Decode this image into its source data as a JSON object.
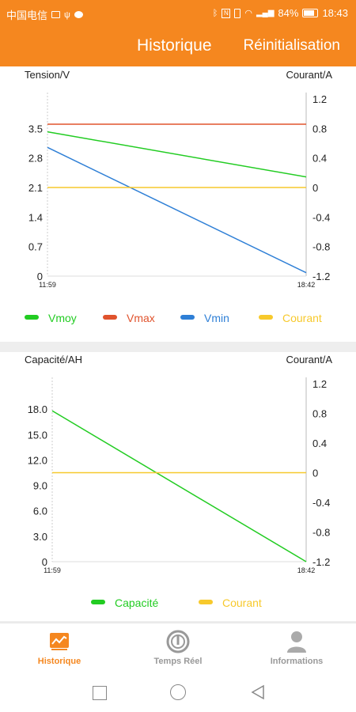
{
  "status_bar": {
    "carrier": "中国电信",
    "battery": "84%",
    "time": "18:43",
    "icons": [
      "sim-icon",
      "usb-icon",
      "message-icon",
      "bluetooth-icon",
      "nfc-icon",
      "vibrate-icon",
      "wifi-icon",
      "signal-icon",
      "battery-icon"
    ]
  },
  "app_bar": {
    "title": "Historique",
    "action": "Réinitialisation"
  },
  "colors": {
    "accent": "#f5871f",
    "vmoy": "#22cc22",
    "vmax": "#e0532d",
    "vmin": "#2e7fd6",
    "courant": "#f7c92c",
    "capacite": "#22cc22",
    "nav_inactive": "#999999"
  },
  "chart_data": [
    {
      "type": "line",
      "left_axis_title": "Tension/V",
      "right_axis_title": "Courant/A",
      "x_labels": [
        "11:59",
        "18:42"
      ],
      "y_left_ticks": [
        "0",
        "0.7",
        "1.4",
        "2.1",
        "2.8",
        "3.5"
      ],
      "y_left_lim": [
        0,
        4.2
      ],
      "y_right_ticks": [
        "-1.2",
        "-0.8",
        "-0.4",
        "0",
        "0.4",
        "0.8",
        "1.2"
      ],
      "y_right_lim": [
        -1.2,
        1.2
      ],
      "series": [
        {
          "name": "Vmoy",
          "axis": "left",
          "color": "#22cc22",
          "values": [
            3.42,
            2.35
          ]
        },
        {
          "name": "Vmax",
          "axis": "left",
          "color": "#e0532d",
          "values": [
            3.6,
            3.6
          ]
        },
        {
          "name": "Vmin",
          "axis": "left",
          "color": "#2e7fd6",
          "values": [
            3.05,
            0.08
          ]
        },
        {
          "name": "Courant",
          "axis": "right",
          "color": "#f7c92c",
          "values": [
            0,
            0
          ]
        }
      ]
    },
    {
      "type": "line",
      "left_axis_title": "Capacité/AH",
      "right_axis_title": "Courant/A",
      "x_labels": [
        "11:59",
        "18:42"
      ],
      "y_left_ticks": [
        "0",
        "3.0",
        "6.0",
        "9.0",
        "12.0",
        "15.0",
        "18.0"
      ],
      "y_left_lim": [
        0,
        21
      ],
      "y_right_ticks": [
        "-1.2",
        "-0.8",
        "-0.4",
        "0",
        "0.4",
        "0.8",
        "1.2"
      ],
      "y_right_lim": [
        -1.2,
        1.2
      ],
      "series": [
        {
          "name": "Capacité",
          "axis": "left",
          "color": "#22cc22",
          "values": [
            17.8,
            0
          ]
        },
        {
          "name": "Courant",
          "axis": "right",
          "color": "#f7c92c",
          "values": [
            0,
            0
          ]
        }
      ]
    }
  ],
  "bottom_nav": [
    {
      "label": "Historique",
      "icon": "chart-icon",
      "active": true
    },
    {
      "label": "Temps Réel",
      "icon": "gauge-icon",
      "active": false
    },
    {
      "label": "Informations",
      "icon": "person-icon",
      "active": false
    }
  ],
  "system_nav": [
    "recent-apps-button",
    "home-button",
    "back-button"
  ]
}
